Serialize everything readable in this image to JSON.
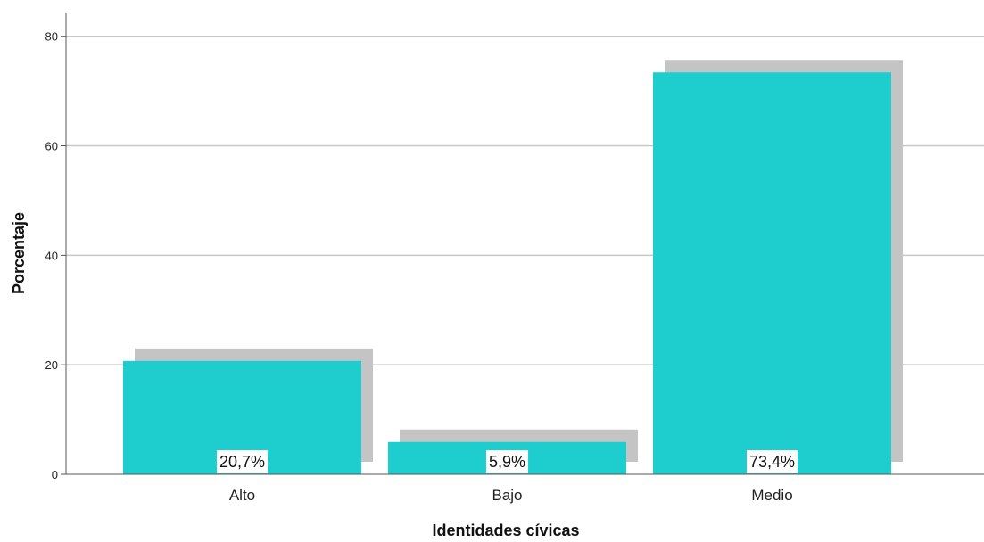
{
  "chart_data": {
    "type": "bar",
    "categories": [
      "Alto",
      "Bajo",
      "Medio"
    ],
    "values": [
      20.7,
      5.9,
      73.4
    ],
    "data_labels": [
      "20,7%",
      "5,9%",
      "73,4%"
    ],
    "xlabel": "Identidades cívicas",
    "ylabel": "Porcentaje",
    "ylim": [
      0,
      85
    ],
    "yticks": [
      0,
      20,
      40,
      60,
      80
    ],
    "grid": true,
    "bar_shadow": true,
    "colors": {
      "bar": "#1ecdcd",
      "shadow": "#c4c4c4",
      "grid": "#c8c8c8",
      "axis": "#555555"
    }
  }
}
